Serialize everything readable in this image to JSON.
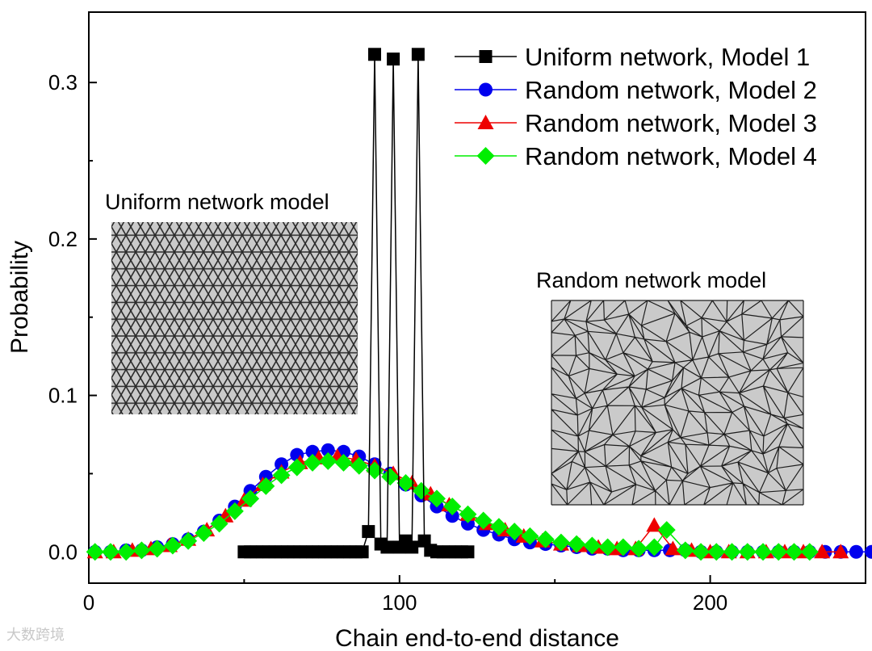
{
  "chart_data": {
    "type": "line",
    "title": "",
    "xlabel": "Chain end-to-end distance",
    "ylabel": "Probability",
    "xlim": [
      0,
      250
    ],
    "ylim": [
      -0.02,
      0.345
    ],
    "xticks": [
      0,
      100,
      200
    ],
    "xtick_labels": [
      "0",
      "100",
      "200"
    ],
    "yticks": [
      0.0,
      0.1,
      0.2,
      0.3
    ],
    "ytick_labels": [
      "0.0",
      "0.1",
      "0.2",
      "0.3"
    ],
    "grid": false,
    "legend_position": "top-right",
    "series": [
      {
        "name": "Uniform network, Model 1",
        "color": "#000000",
        "marker": "square",
        "x": [
          50,
          52,
          54,
          56,
          58,
          60,
          62,
          64,
          66,
          68,
          70,
          72,
          74,
          76,
          78,
          80,
          82,
          84,
          86,
          88,
          90,
          92,
          94,
          96,
          98,
          100,
          102,
          104,
          106,
          108,
          110,
          112,
          114,
          116,
          118,
          120,
          122
        ],
        "y": [
          0,
          0,
          0,
          0,
          0,
          0,
          0,
          0,
          0,
          0,
          0,
          0,
          0,
          0,
          0,
          0,
          0,
          0,
          0,
          0,
          0.013,
          0.318,
          0.005,
          0.003,
          0.315,
          0.003,
          0.007,
          0.003,
          0.318,
          0.007,
          0.001,
          0,
          0,
          0,
          0,
          0,
          0
        ]
      },
      {
        "name": "Random network, Model 2",
        "color": "#0000ee",
        "marker": "circle",
        "x": [
          2,
          7,
          12,
          17,
          22,
          27,
          32,
          37,
          42,
          47,
          52,
          57,
          62,
          67,
          72,
          77,
          82,
          87,
          92,
          97,
          102,
          107,
          112,
          117,
          122,
          127,
          132,
          137,
          142,
          147,
          152,
          157,
          162,
          167,
          172,
          177,
          182,
          187,
          192,
          197,
          202,
          207,
          212,
          217,
          222,
          227,
          232,
          237,
          242,
          247,
          252
        ],
        "y": [
          0,
          0,
          0.001,
          0.001,
          0.003,
          0.005,
          0.008,
          0.013,
          0.02,
          0.029,
          0.039,
          0.048,
          0.056,
          0.062,
          0.064,
          0.065,
          0.064,
          0.061,
          0.056,
          0.05,
          0.043,
          0.036,
          0.029,
          0.023,
          0.018,
          0.014,
          0.011,
          0.008,
          0.006,
          0.005,
          0.004,
          0.003,
          0.002,
          0.002,
          0.001,
          0.001,
          0.001,
          0.001,
          0.001,
          0,
          0,
          0,
          0,
          0,
          0,
          0,
          0,
          0,
          0,
          0,
          0
        ]
      },
      {
        "name": "Random network, Model 3",
        "color": "#ee0000",
        "marker": "triangle",
        "x": [
          2,
          8,
          14,
          20,
          26,
          32,
          38,
          44,
          50,
          56,
          62,
          68,
          74,
          80,
          86,
          92,
          98,
          104,
          110,
          116,
          122,
          128,
          134,
          140,
          146,
          152,
          158,
          164,
          170,
          176,
          182,
          188,
          194,
          200,
          206,
          212,
          218,
          224,
          230,
          236,
          242
        ],
        "y": [
          0,
          0,
          0.001,
          0.002,
          0.004,
          0.008,
          0.014,
          0.023,
          0.033,
          0.043,
          0.051,
          0.057,
          0.06,
          0.061,
          0.059,
          0.055,
          0.05,
          0.044,
          0.037,
          0.03,
          0.024,
          0.018,
          0.014,
          0.01,
          0.007,
          0.005,
          0.004,
          0.003,
          0.002,
          0.002,
          0.017,
          0.002,
          0.001,
          0,
          0,
          0,
          0,
          0,
          0,
          0,
          0
        ]
      },
      {
        "name": "Random network, Model 4",
        "color": "#00ee00",
        "marker": "diamond",
        "x": [
          2,
          7,
          12,
          17,
          22,
          27,
          32,
          37,
          42,
          47,
          52,
          57,
          62,
          67,
          72,
          77,
          82,
          87,
          92,
          97,
          102,
          107,
          112,
          117,
          122,
          127,
          132,
          137,
          142,
          147,
          152,
          157,
          162,
          167,
          172,
          177,
          182,
          186,
          192,
          197,
          202,
          207,
          212,
          217,
          222,
          227,
          232
        ],
        "y": [
          0,
          0,
          0,
          0.001,
          0.002,
          0.004,
          0.007,
          0.012,
          0.018,
          0.026,
          0.034,
          0.042,
          0.049,
          0.054,
          0.057,
          0.058,
          0.057,
          0.055,
          0.052,
          0.048,
          0.044,
          0.039,
          0.034,
          0.029,
          0.024,
          0.02,
          0.016,
          0.013,
          0.01,
          0.008,
          0.006,
          0.005,
          0.004,
          0.003,
          0.003,
          0.002,
          0.003,
          0.014,
          0.001,
          0,
          0,
          0,
          0,
          0,
          0,
          0,
          0
        ]
      }
    ]
  },
  "insets": {
    "uniform_title": "Uniform network model",
    "random_title": "Random network model"
  },
  "watermark": "大数跨境"
}
